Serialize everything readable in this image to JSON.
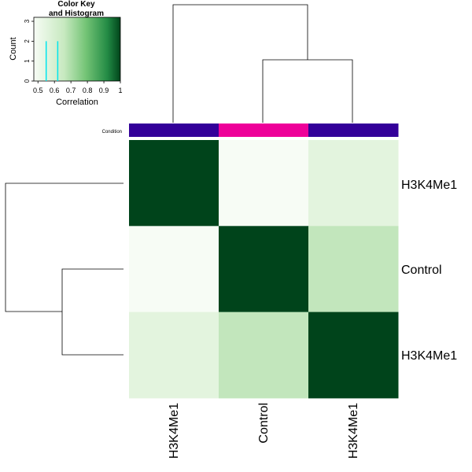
{
  "chart_data": {
    "type": "heatmap",
    "row_labels": [
      "H3K4Me1",
      "Control",
      "H3K4Me1"
    ],
    "col_labels": [
      "H3K4Me1",
      "Control",
      "H3K4Me1"
    ],
    "values": [
      [
        1.0,
        0.55,
        0.62
      ],
      [
        0.55,
        1.0,
        0.7
      ],
      [
        0.62,
        0.7,
        1.0
      ]
    ],
    "color_scale": {
      "low": "#f7fcf5",
      "mid": "#a1d99b",
      "high": "#00441b",
      "domain": [
        0.5,
        1.0
      ]
    },
    "cell_colors": [
      [
        "#00441b",
        "#f7fcf5",
        "#e3f4de"
      ],
      [
        "#f7fcf5",
        "#00441b",
        "#c2e6bc"
      ],
      [
        "#e3f4de",
        "#c2e6bc",
        "#00441b"
      ]
    ],
    "condition_bar": {
      "label": "Condition",
      "colors": [
        "#330099",
        "#ee0099",
        "#330099"
      ]
    },
    "col_dendrogram": "(1,(2,3))",
    "row_dendrogram": "(1,(2,3))",
    "color_key": {
      "title_line1": "Color Key",
      "title_line2": "and Histogram",
      "xlabel": "Correlation",
      "ylabel": "Count",
      "x_ticks": [
        "0.5",
        "0.6",
        "0.7",
        "0.8",
        "0.9",
        "1"
      ],
      "x_range": [
        0.475,
        1.0
      ],
      "y_ticks": [
        "0",
        "1",
        "2",
        "3"
      ],
      "y_range": [
        0,
        3.2
      ],
      "histogram": [
        {
          "x": 0.55,
          "count": 2
        },
        {
          "x": 0.62,
          "count": 2
        }
      ],
      "histogram_color": "#00e5ee"
    }
  }
}
